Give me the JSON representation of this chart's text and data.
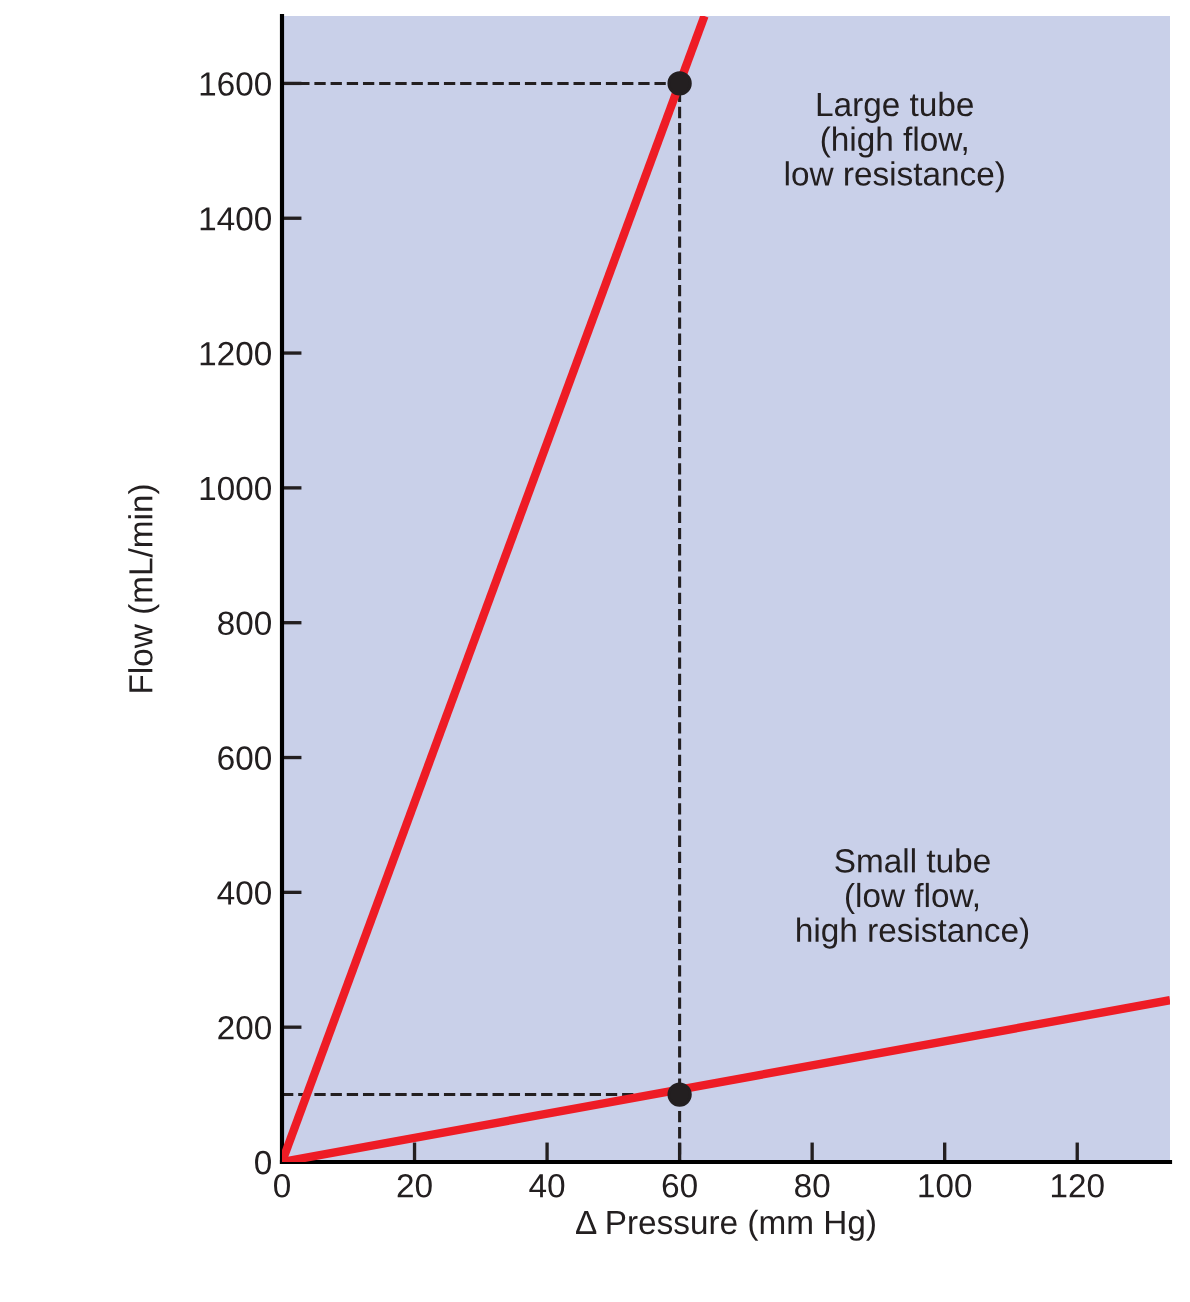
{
  "chart_data": {
    "type": "line",
    "xlabel": "Δ Pressure (mm Hg)",
    "ylabel": "Flow (mL/min)",
    "xlim": [
      0,
      134
    ],
    "ylim": [
      0,
      1700
    ],
    "xticks": [
      0,
      20,
      40,
      60,
      80,
      100,
      120
    ],
    "yticks": [
      0,
      200,
      400,
      600,
      800,
      1000,
      1200,
      1400,
      1600
    ],
    "grid": false,
    "series": [
      {
        "color": "#ee1c25",
        "x": [
          0,
          63.75
        ],
        "values": [
          0,
          1700
        ]
      },
      {
        "color": "#ee1c25",
        "x": [
          0,
          134
        ],
        "values": [
          0,
          240
        ]
      },
      {
        "color": "#231f20",
        "line_style": "dashed",
        "x": [
          0,
          60,
          60
        ],
        "values": [
          1600,
          1600,
          0
        ]
      },
      {
        "color": "#231f20",
        "line_style": "dashed",
        "x": [
          0,
          60
        ],
        "values": [
          100,
          100
        ]
      },
      {
        "type": "scatter",
        "color": "#231f20",
        "marker": "circle",
        "x": [
          60,
          60
        ],
        "values": [
          1600,
          100
        ]
      }
    ],
    "annotations": [
      "Large tube\n(high flow,\nlow resistance)",
      "Small tube\n(low flow,\nhigh resistance)"
    ]
  }
}
